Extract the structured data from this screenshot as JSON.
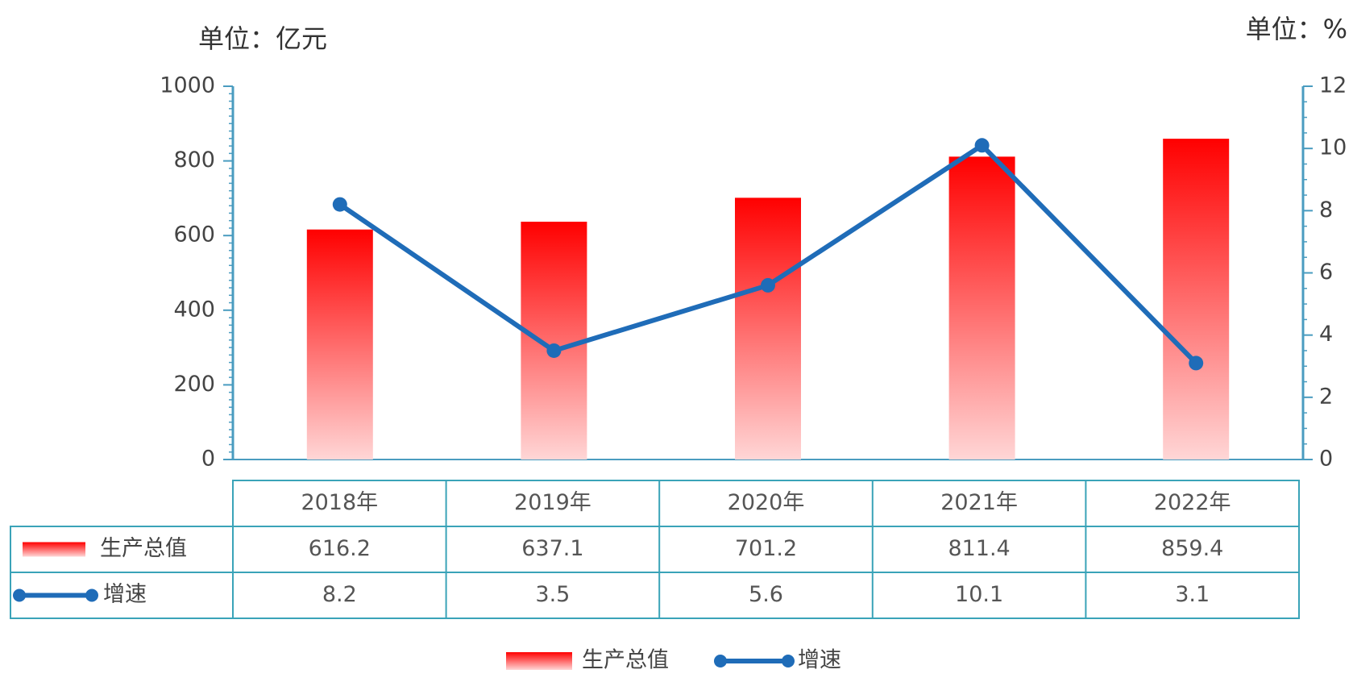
{
  "chart_data": {
    "type": "bar-line",
    "y_unit_label": "单位：亿元",
    "y2_unit_label": "单位：%",
    "categories": [
      "2018年",
      "2019年",
      "2020年",
      "2021年",
      "2022年"
    ],
    "series": [
      {
        "name": "生产总值",
        "type": "bar",
        "color": "#ff0000",
        "values": [
          616.2,
          637.1,
          701.2,
          811.4,
          859.4
        ]
      },
      {
        "name": "增速",
        "type": "line",
        "axis": "y2",
        "color": "#1f6cb8",
        "values": [
          8.2,
          3.5,
          5.6,
          10.1,
          3.1
        ]
      }
    ],
    "ylim": [
      0,
      1000
    ],
    "yticks": [
      0,
      200,
      400,
      600,
      800,
      1000
    ],
    "y2lim": [
      0,
      12
    ],
    "y2ticks": [
      0,
      2,
      4,
      6,
      8,
      10,
      12
    ],
    "data_table": true,
    "legend": "bottom"
  }
}
